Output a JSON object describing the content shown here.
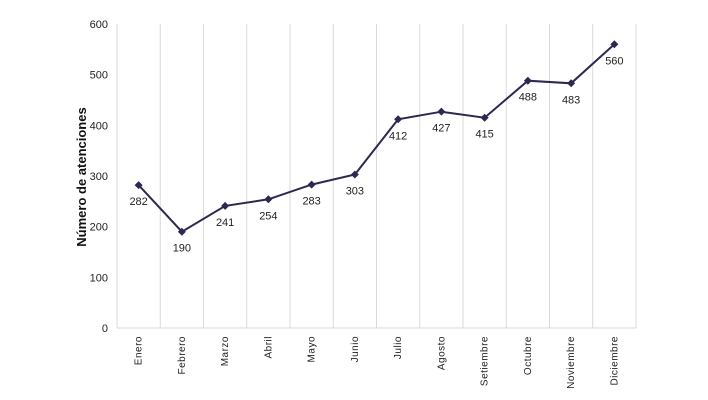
{
  "chart_data": {
    "type": "line",
    "title": "",
    "xlabel": "",
    "ylabel": "Número de atenciones",
    "categories": [
      "Enero",
      "Febrero",
      "Marzo",
      "Abril",
      "Mayo",
      "Junio",
      "Julio",
      "Agosto",
      "Setiembre",
      "Octubre",
      "Noviembre",
      "Diciembre"
    ],
    "series": [
      {
        "values": [
          282,
          190,
          241,
          254,
          283,
          303,
          412,
          427,
          415,
          488,
          483,
          560
        ]
      }
    ],
    "data_labels": [
      "282",
      "190",
      "241",
      "254",
      "283",
      "303",
      "412",
      "427",
      "415",
      "488",
      "483",
      "560"
    ],
    "ylim": [
      0,
      600
    ],
    "yticks": [
      "0",
      "100",
      "200",
      "300",
      "400",
      "500",
      "600"
    ],
    "grid": "vertical",
    "legend": "none",
    "line_color": "#2e2850",
    "grid_color": "#d9d9d9"
  }
}
